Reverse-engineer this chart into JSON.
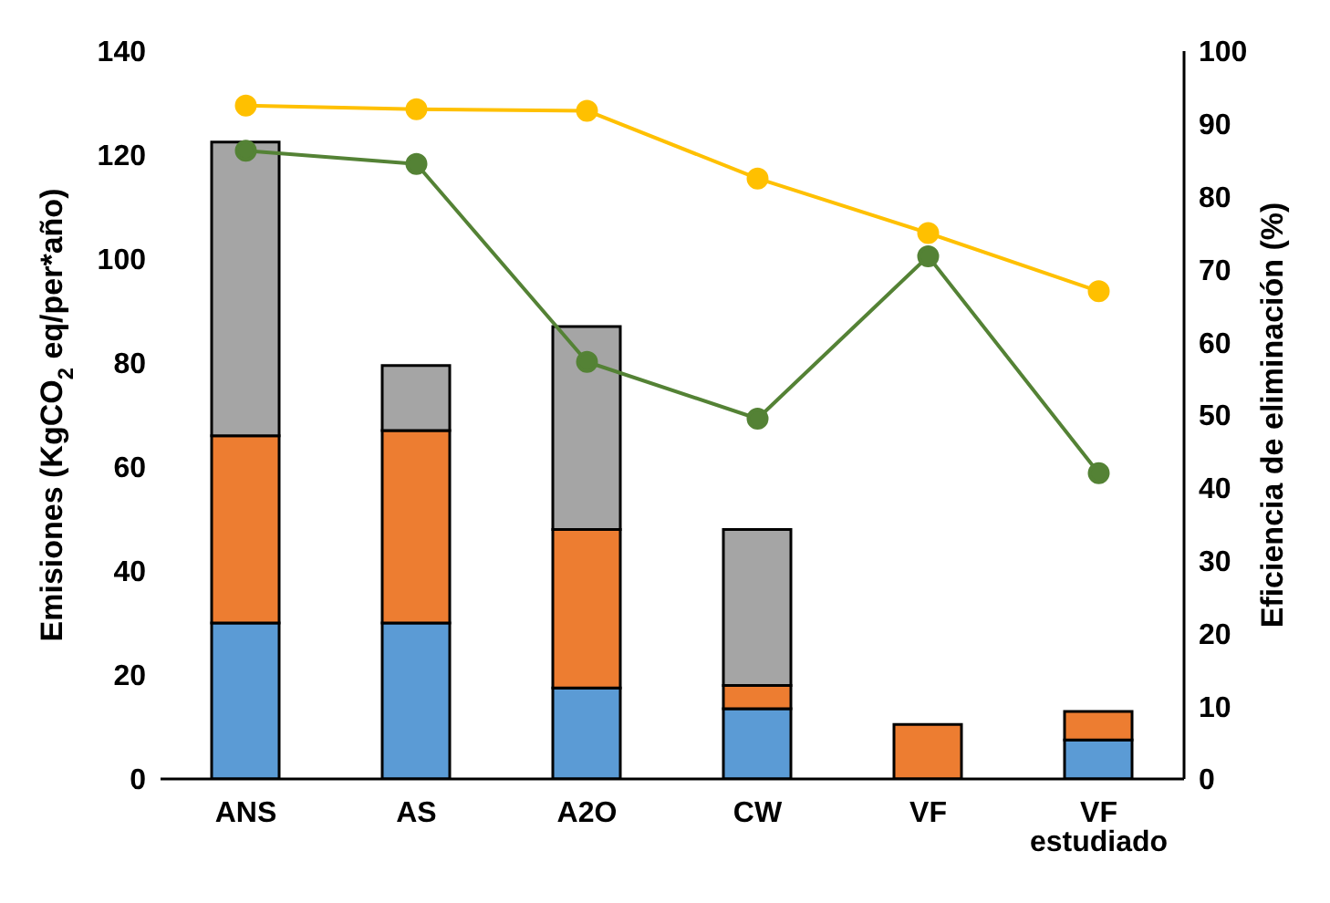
{
  "chart_data": {
    "type": "bar",
    "stacked": true,
    "ylabel": "Emisiones (KgCO$_{2}$ eq/per*año)",
    "y2label": "Eficiencia de eliminación (%)",
    "categories": [
      "ANS",
      "AS",
      "A2O",
      "CW",
      "VF",
      "VF estudiado"
    ],
    "series": [
      {
        "color": "#5b9bd5",
        "values": [
          30,
          30,
          17.5,
          13.5,
          null,
          7.5
        ]
      },
      {
        "color": "#ed7d31",
        "values": [
          36,
          37,
          30.5,
          4.5,
          10.5,
          5.5
        ]
      },
      {
        "color": "#a5a5a5",
        "values": [
          56.5,
          12.5,
          39,
          30,
          null,
          null
        ]
      },
      {
        "type": "line",
        "axis": "y2",
        "color": "#ffc000",
        "values": [
          92.5,
          92,
          91.8,
          82.5,
          75,
          67
        ]
      },
      {
        "type": "line",
        "axis": "y2",
        "color": "#548235",
        "values": [
          86.3,
          84.5,
          57.3,
          49.5,
          71.8,
          42
        ]
      }
    ],
    "ylim": [
      0,
      140
    ],
    "yticks": [
      0,
      20,
      40,
      60,
      80,
      100,
      120,
      140
    ],
    "y2lim": [
      0,
      100
    ],
    "y2ticks": [
      0,
      10,
      20,
      30,
      40,
      50,
      60,
      70,
      80,
      90,
      100
    ],
    "grid": false,
    "legend": false,
    "marker": "circle",
    "line_style": "solid"
  }
}
